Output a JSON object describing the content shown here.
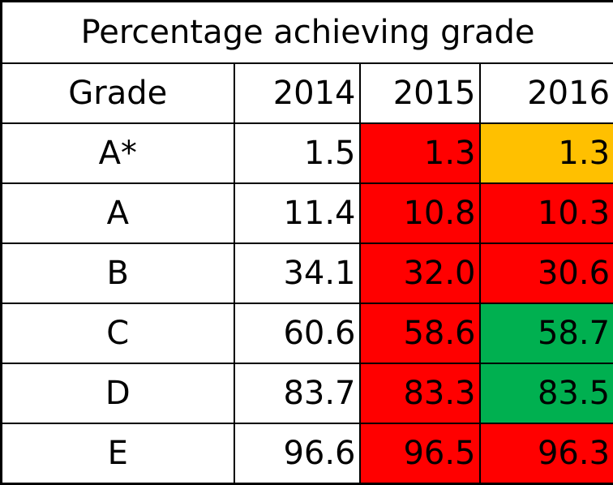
{
  "chart_data": {
    "type": "table",
    "title": "Percentage achieving grade",
    "columns": [
      "Grade",
      "2014",
      "2015",
      "2016"
    ],
    "rows": [
      {
        "grade": "A*",
        "values": [
          "1.5",
          "1.3",
          "1.3"
        ],
        "highlight": [
          "none",
          "red",
          "amber"
        ]
      },
      {
        "grade": "A",
        "values": [
          "11.4",
          "10.8",
          "10.3"
        ],
        "highlight": [
          "none",
          "red",
          "red"
        ]
      },
      {
        "grade": "B",
        "values": [
          "34.1",
          "32.0",
          "30.6"
        ],
        "highlight": [
          "none",
          "red",
          "red"
        ]
      },
      {
        "grade": "C",
        "values": [
          "60.6",
          "58.6",
          "58.7"
        ],
        "highlight": [
          "none",
          "red",
          "green"
        ]
      },
      {
        "grade": "D",
        "values": [
          "83.7",
          "83.3",
          "83.5"
        ],
        "highlight": [
          "none",
          "red",
          "green"
        ]
      },
      {
        "grade": "E",
        "values": [
          "96.6",
          "96.5",
          "96.3"
        ],
        "highlight": [
          "none",
          "red",
          "red"
        ]
      }
    ]
  },
  "colors": {
    "red": "#ff0000",
    "amber": "#ffc000",
    "green": "#00b050",
    "border": "#000000"
  }
}
